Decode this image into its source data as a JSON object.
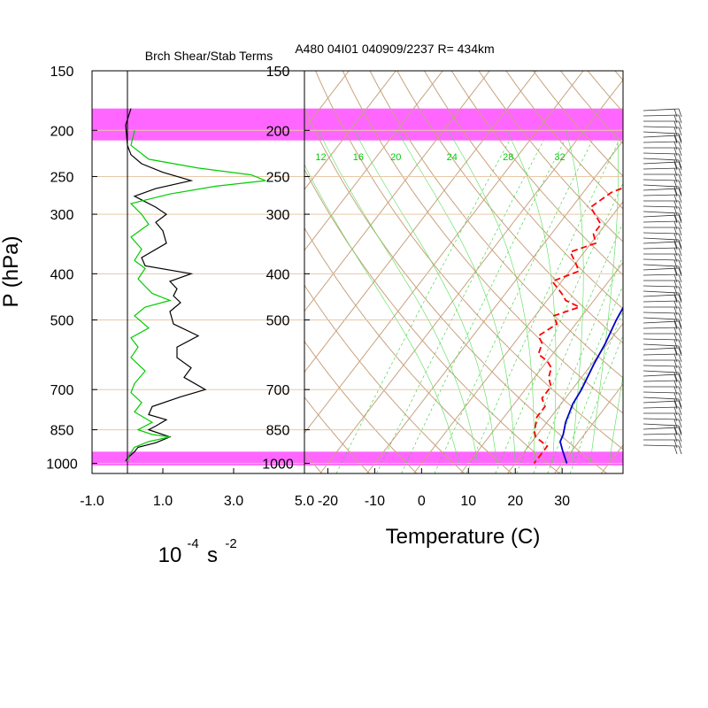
{
  "chart_data": [
    {
      "type": "line",
      "panel": "shear-stability",
      "title": "Brch Shear/Stab Terms",
      "xlabel": "10",
      "xlabel_exp": "-4",
      "xlabel_unit": "s",
      "xlabel_unit_exp": "-2",
      "ylabel": "P (hPa)",
      "xlim": [
        -1.0,
        5.0
      ],
      "ylim": [
        1000,
        150
      ],
      "y_scale": "log",
      "x_ticks": [
        "-1.0",
        "1.0",
        "3.0",
        "5.0"
      ],
      "y_ticks": [
        "150",
        "200",
        "250",
        "300",
        "400",
        "500",
        "700",
        "850",
        "1000"
      ],
      "bands": [
        {
          "p_top": 180,
          "p_bottom": 210,
          "color": "#ff66ff"
        },
        {
          "p_top": 945,
          "p_bottom": 1010,
          "color": "#ff66ff"
        }
      ],
      "series": [
        {
          "color": "#000000",
          "points": [
            [
              0.1,
              180
            ],
            [
              -0.05,
              195
            ],
            [
              0.0,
              215
            ],
            [
              0.1,
              225
            ],
            [
              0.4,
              235
            ],
            [
              1.0,
              245
            ],
            [
              1.8,
              255
            ],
            [
              0.8,
              265
            ],
            [
              0.2,
              275
            ],
            [
              0.8,
              290
            ],
            [
              1.1,
              300
            ],
            [
              0.8,
              312
            ],
            [
              1.0,
              325
            ],
            [
              1.1,
              345
            ],
            [
              0.4,
              370
            ],
            [
              0.5,
              385
            ],
            [
              1.8,
              400
            ],
            [
              1.2,
              415
            ],
            [
              1.4,
              430
            ],
            [
              1.3,
              445
            ],
            [
              1.5,
              460
            ],
            [
              1.2,
              480
            ],
            [
              1.3,
              510
            ],
            [
              2.0,
              540
            ],
            [
              1.4,
              570
            ],
            [
              1.4,
              600
            ],
            [
              1.8,
              630
            ],
            [
              1.6,
              660
            ],
            [
              2.2,
              700
            ],
            [
              1.5,
              725
            ],
            [
              0.7,
              760
            ],
            [
              0.6,
              790
            ],
            [
              1.1,
              810
            ],
            [
              0.8,
              835
            ],
            [
              0.6,
              850
            ],
            [
              1.2,
              880
            ],
            [
              0.8,
              905
            ],
            [
              0.3,
              925
            ],
            [
              0.2,
              945
            ],
            [
              0.1,
              960
            ],
            [
              0.0,
              975
            ],
            [
              -0.05,
              990
            ]
          ]
        },
        {
          "color": "#00cc00",
          "points": [
            [
              0.2,
              200
            ],
            [
              0.1,
              215
            ],
            [
              0.6,
              230
            ],
            [
              2.0,
              240
            ],
            [
              3.5,
              248
            ],
            [
              3.9,
              255
            ],
            [
              2.5,
              262
            ],
            [
              1.2,
              272
            ],
            [
              0.1,
              285
            ],
            [
              0.4,
              300
            ],
            [
              0.6,
              315
            ],
            [
              0.1,
              335
            ],
            [
              0.4,
              355
            ],
            [
              0.2,
              375
            ],
            [
              0.5,
              390
            ],
            [
              0.3,
              410
            ],
            [
              0.5,
              425
            ],
            [
              0.7,
              440
            ],
            [
              1.2,
              455
            ],
            [
              0.5,
              470
            ],
            [
              0.2,
              490
            ],
            [
              0.6,
              520
            ],
            [
              0.1,
              545
            ],
            [
              0.3,
              570
            ],
            [
              0.1,
              600
            ],
            [
              0.5,
              640
            ],
            [
              0.2,
              680
            ],
            [
              0.1,
              710
            ],
            [
              0.4,
              745
            ],
            [
              0.2,
              780
            ],
            [
              0.7,
              820
            ],
            [
              0.3,
              850
            ],
            [
              0.7,
              870
            ],
            [
              1.2,
              880
            ],
            [
              0.6,
              900
            ],
            [
              0.2,
              925
            ],
            [
              0.05,
              960
            ],
            [
              0.0,
              990
            ]
          ]
        }
      ]
    },
    {
      "type": "line",
      "panel": "skew-t",
      "title": "A480 04I01 040909/2237 R= 434km",
      "xlabel": "Temperature (C)",
      "xlim": [
        -25,
        43
      ],
      "ylim": [
        1000,
        150
      ],
      "y_scale": "log",
      "x_ticks": [
        "-20",
        "-10",
        "0",
        "10",
        "20",
        "30"
      ],
      "y_ticks": [
        "150",
        "200",
        "250",
        "300",
        "400",
        "500",
        "700",
        "850",
        "1000"
      ],
      "mixing_ratio_labels": [
        "12",
        "16",
        "20",
        "24",
        "28",
        "32"
      ],
      "bands": [
        {
          "p_top": 180,
          "p_bottom": 210,
          "color": "#ff66ff"
        },
        {
          "p_top": 945,
          "p_bottom": 1010,
          "color": "#ff66ff"
        }
      ],
      "series": [
        {
          "name": "temperature",
          "color": "#0000cc",
          "style": "solid",
          "points": [
            [
              -3.5,
              180
            ],
            [
              -1,
              200
            ],
            [
              1.5,
              225
            ],
            [
              5,
              250
            ],
            [
              8,
              290
            ],
            [
              11,
              330
            ],
            [
              14,
              370
            ],
            [
              16,
              400
            ],
            [
              17,
              450
            ],
            [
              18,
              500
            ],
            [
              19.5,
              560
            ],
            [
              20.5,
              620
            ],
            [
              22,
              700
            ],
            [
              22.5,
              750
            ],
            [
              24,
              820
            ],
            [
              25.5,
              870
            ],
            [
              26,
              900
            ],
            [
              28,
              940
            ],
            [
              31,
              1000
            ]
          ]
        },
        {
          "name": "dewpoint",
          "color": "#ff0000",
          "style": "dashed",
          "points": [
            [
              -9,
              200
            ],
            [
              -5,
              230
            ],
            [
              2,
              250
            ],
            [
              -4,
              270
            ],
            [
              -6,
              290
            ],
            [
              -1,
              315
            ],
            [
              -1,
              330
            ],
            [
              1,
              345
            ],
            [
              -3,
              360
            ],
            [
              0,
              380
            ],
            [
              2,
              395
            ],
            [
              -2,
              415
            ],
            [
              2,
              440
            ],
            [
              4,
              455
            ],
            [
              8,
              470
            ],
            [
              4,
              490
            ],
            [
              6,
              510
            ],
            [
              4,
              540
            ],
            [
              6,
              560
            ],
            [
              7,
              590
            ],
            [
              10,
              610
            ],
            [
              12,
              630
            ],
            [
              13,
              660
            ],
            [
              15,
              690
            ],
            [
              15,
              730
            ],
            [
              17,
              760
            ],
            [
              17,
              800
            ],
            [
              18,
              830
            ],
            [
              19,
              860
            ],
            [
              20,
              880
            ],
            [
              22,
              900
            ],
            [
              24,
              920
            ],
            [
              24,
              945
            ],
            [
              24,
              975
            ],
            [
              24,
              1000
            ]
          ]
        }
      ]
    }
  ]
}
